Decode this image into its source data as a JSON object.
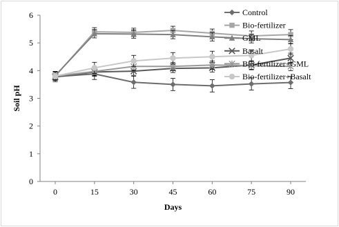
{
  "chart_data": {
    "type": "line",
    "xlabel": "Days",
    "ylabel": "Soil pH",
    "x": [
      0,
      15,
      30,
      45,
      60,
      75,
      90
    ],
    "xlim": [
      0,
      90
    ],
    "ylim": [
      0,
      6
    ],
    "yticks": [
      0,
      1,
      2,
      3,
      4,
      5,
      6
    ],
    "legend_position": "right",
    "grid": false,
    "series": [
      {
        "name": "Control",
        "marker": "diamond",
        "color": "#6d6d6d",
        "values": [
          3.78,
          3.88,
          3.58,
          3.5,
          3.45,
          3.52,
          3.57
        ],
        "errors": [
          0.18,
          0.2,
          0.22,
          0.22,
          0.22,
          0.22,
          0.22
        ]
      },
      {
        "name": "Bio-fertilizer",
        "marker": "square",
        "color": "#a6a6a6",
        "values": [
          3.8,
          5.4,
          5.38,
          5.45,
          5.35,
          5.25,
          5.3
        ],
        "errors": [
          0.15,
          0.15,
          0.15,
          0.15,
          0.15,
          0.18,
          0.18
        ]
      },
      {
        "name": "GML",
        "marker": "triangle",
        "color": "#808080",
        "values": [
          3.82,
          5.33,
          5.32,
          5.3,
          5.22,
          5.15,
          5.12
        ],
        "errors": [
          0.15,
          0.15,
          0.15,
          0.15,
          0.15,
          0.15,
          0.15
        ]
      },
      {
        "name": "Basalt",
        "marker": "x",
        "color": "#595959",
        "values": [
          3.77,
          3.95,
          3.98,
          4.08,
          4.1,
          4.2,
          4.45
        ],
        "errors": [
          0.12,
          0.15,
          0.15,
          0.15,
          0.15,
          0.15,
          0.18
        ]
      },
      {
        "name": "Bio-fertilizer+GML",
        "marker": "asterisk",
        "color": "#9a9a9a",
        "values": [
          3.8,
          3.97,
          4.15,
          4.15,
          4.2,
          4.18,
          4.15
        ],
        "errors": [
          0.15,
          0.15,
          0.15,
          0.15,
          0.15,
          0.15,
          0.15
        ]
      },
      {
        "name": "Bio-fertilizer+Basalt",
        "marker": "circle",
        "color": "#c8c8c8",
        "values": [
          3.8,
          4.1,
          4.35,
          4.45,
          4.5,
          4.55,
          4.78
        ],
        "errors": [
          0.15,
          0.2,
          0.2,
          0.2,
          0.2,
          0.2,
          0.2
        ]
      }
    ]
  }
}
